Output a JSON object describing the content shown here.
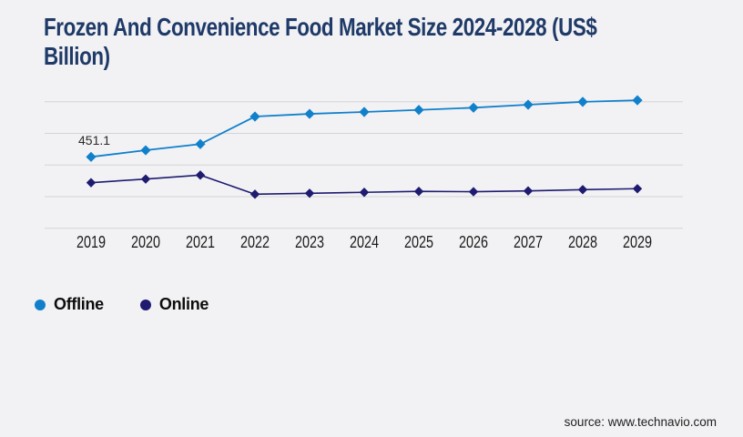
{
  "title": {
    "line1": "Frozen And Convenience Food Market Size 2024-2028 (US$",
    "line2": "Billion)"
  },
  "chart_data": {
    "type": "line",
    "categories": [
      "2019",
      "2020",
      "2021",
      "2022",
      "2023",
      "2024",
      "2025",
      "2026",
      "2027",
      "2028",
      "2029"
    ],
    "series": [
      {
        "name": "Offline",
        "color": "#1180cb",
        "marker": "diamond",
        "values": [
          451.1,
          493,
          532,
          706,
          723,
          735,
          748,
          762,
          781,
          799,
          809
        ]
      },
      {
        "name": "Online",
        "color": "#1e1b70",
        "marker": "diamond",
        "values": [
          288,
          311,
          336,
          215,
          221,
          227,
          233,
          231,
          236,
          244,
          250
        ]
      }
    ],
    "point_label": {
      "series": "Offline",
      "category": "2019",
      "text": "451.1"
    },
    "ylim": [
      0,
      800
    ],
    "gridline_step": 200,
    "grid": "horizontal-only",
    "y_axis_labels_visible": false,
    "legend_position": "bottom-left",
    "xlabel": "",
    "ylabel": ""
  },
  "footer": {
    "source": "source: www.technavio.com"
  },
  "colors": {
    "background": "#f2f2f4",
    "title": "#1f3a68",
    "gridline": "#d4d4d8",
    "axis_label": "#1b1b1b",
    "data_label": "#2a2a2a",
    "source_text": "#1f1f1f",
    "legend_text": "#0d0d0d",
    "offline_series": "#1180cb",
    "online_series": "#1e1b70"
  }
}
